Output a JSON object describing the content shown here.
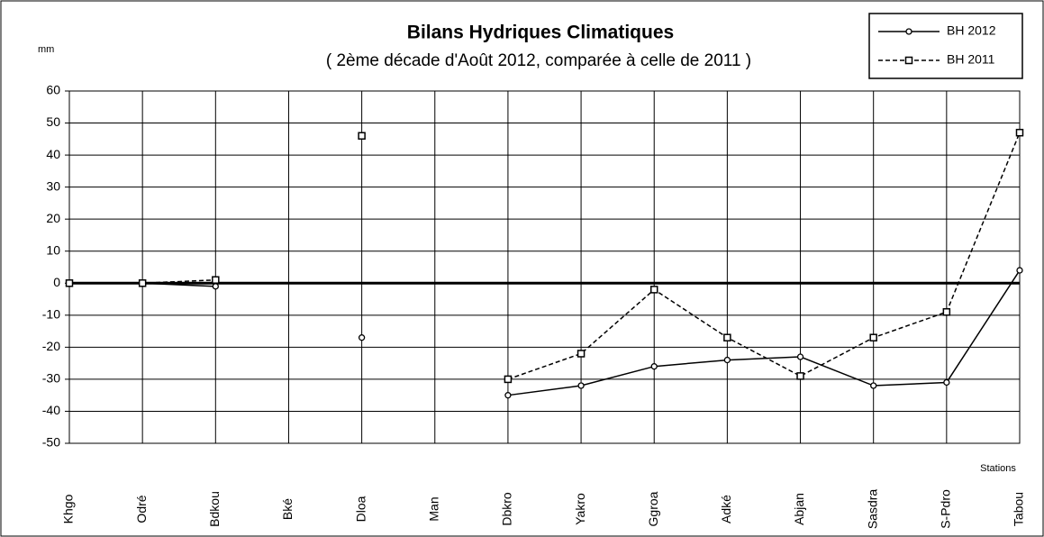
{
  "chart_data": {
    "type": "line",
    "title": "Bilans Hydriques Climatiques",
    "subtitle": "( 2ème décade d'Août 2012, comparée à celle de 2011 )",
    "y_label": "mm",
    "x_label": "Stations",
    "categories": [
      "Khgo",
      "Odré",
      "Bdkou",
      "Bké",
      "Dloa",
      "Man",
      "Dbkro",
      "Yakro",
      "Ggroa",
      "Adké",
      "Abjan",
      "Sasdra",
      "S-Pdro",
      "Tabou"
    ],
    "series": [
      {
        "name": "BH 2012",
        "color": "#000000",
        "line_style": "solid",
        "marker": "circle",
        "values": [
          0,
          0,
          -1,
          null,
          -17,
          null,
          -35,
          -32,
          -26,
          -24,
          -23,
          -32,
          -31,
          4
        ]
      },
      {
        "name": "BH 2011",
        "color": "#000000",
        "line_style": "dashed",
        "marker": "square",
        "values": [
          0,
          0,
          1,
          null,
          46,
          null,
          -30,
          -22,
          -2,
          -17,
          -29,
          -17,
          -9,
          47
        ]
      }
    ],
    "ylim": [
      -50,
      60
    ],
    "yticks": [
      -50,
      -40,
      -30,
      -20,
      -10,
      0,
      10,
      20,
      30,
      40,
      50,
      60
    ],
    "grid": true,
    "legend": "top-right"
  }
}
